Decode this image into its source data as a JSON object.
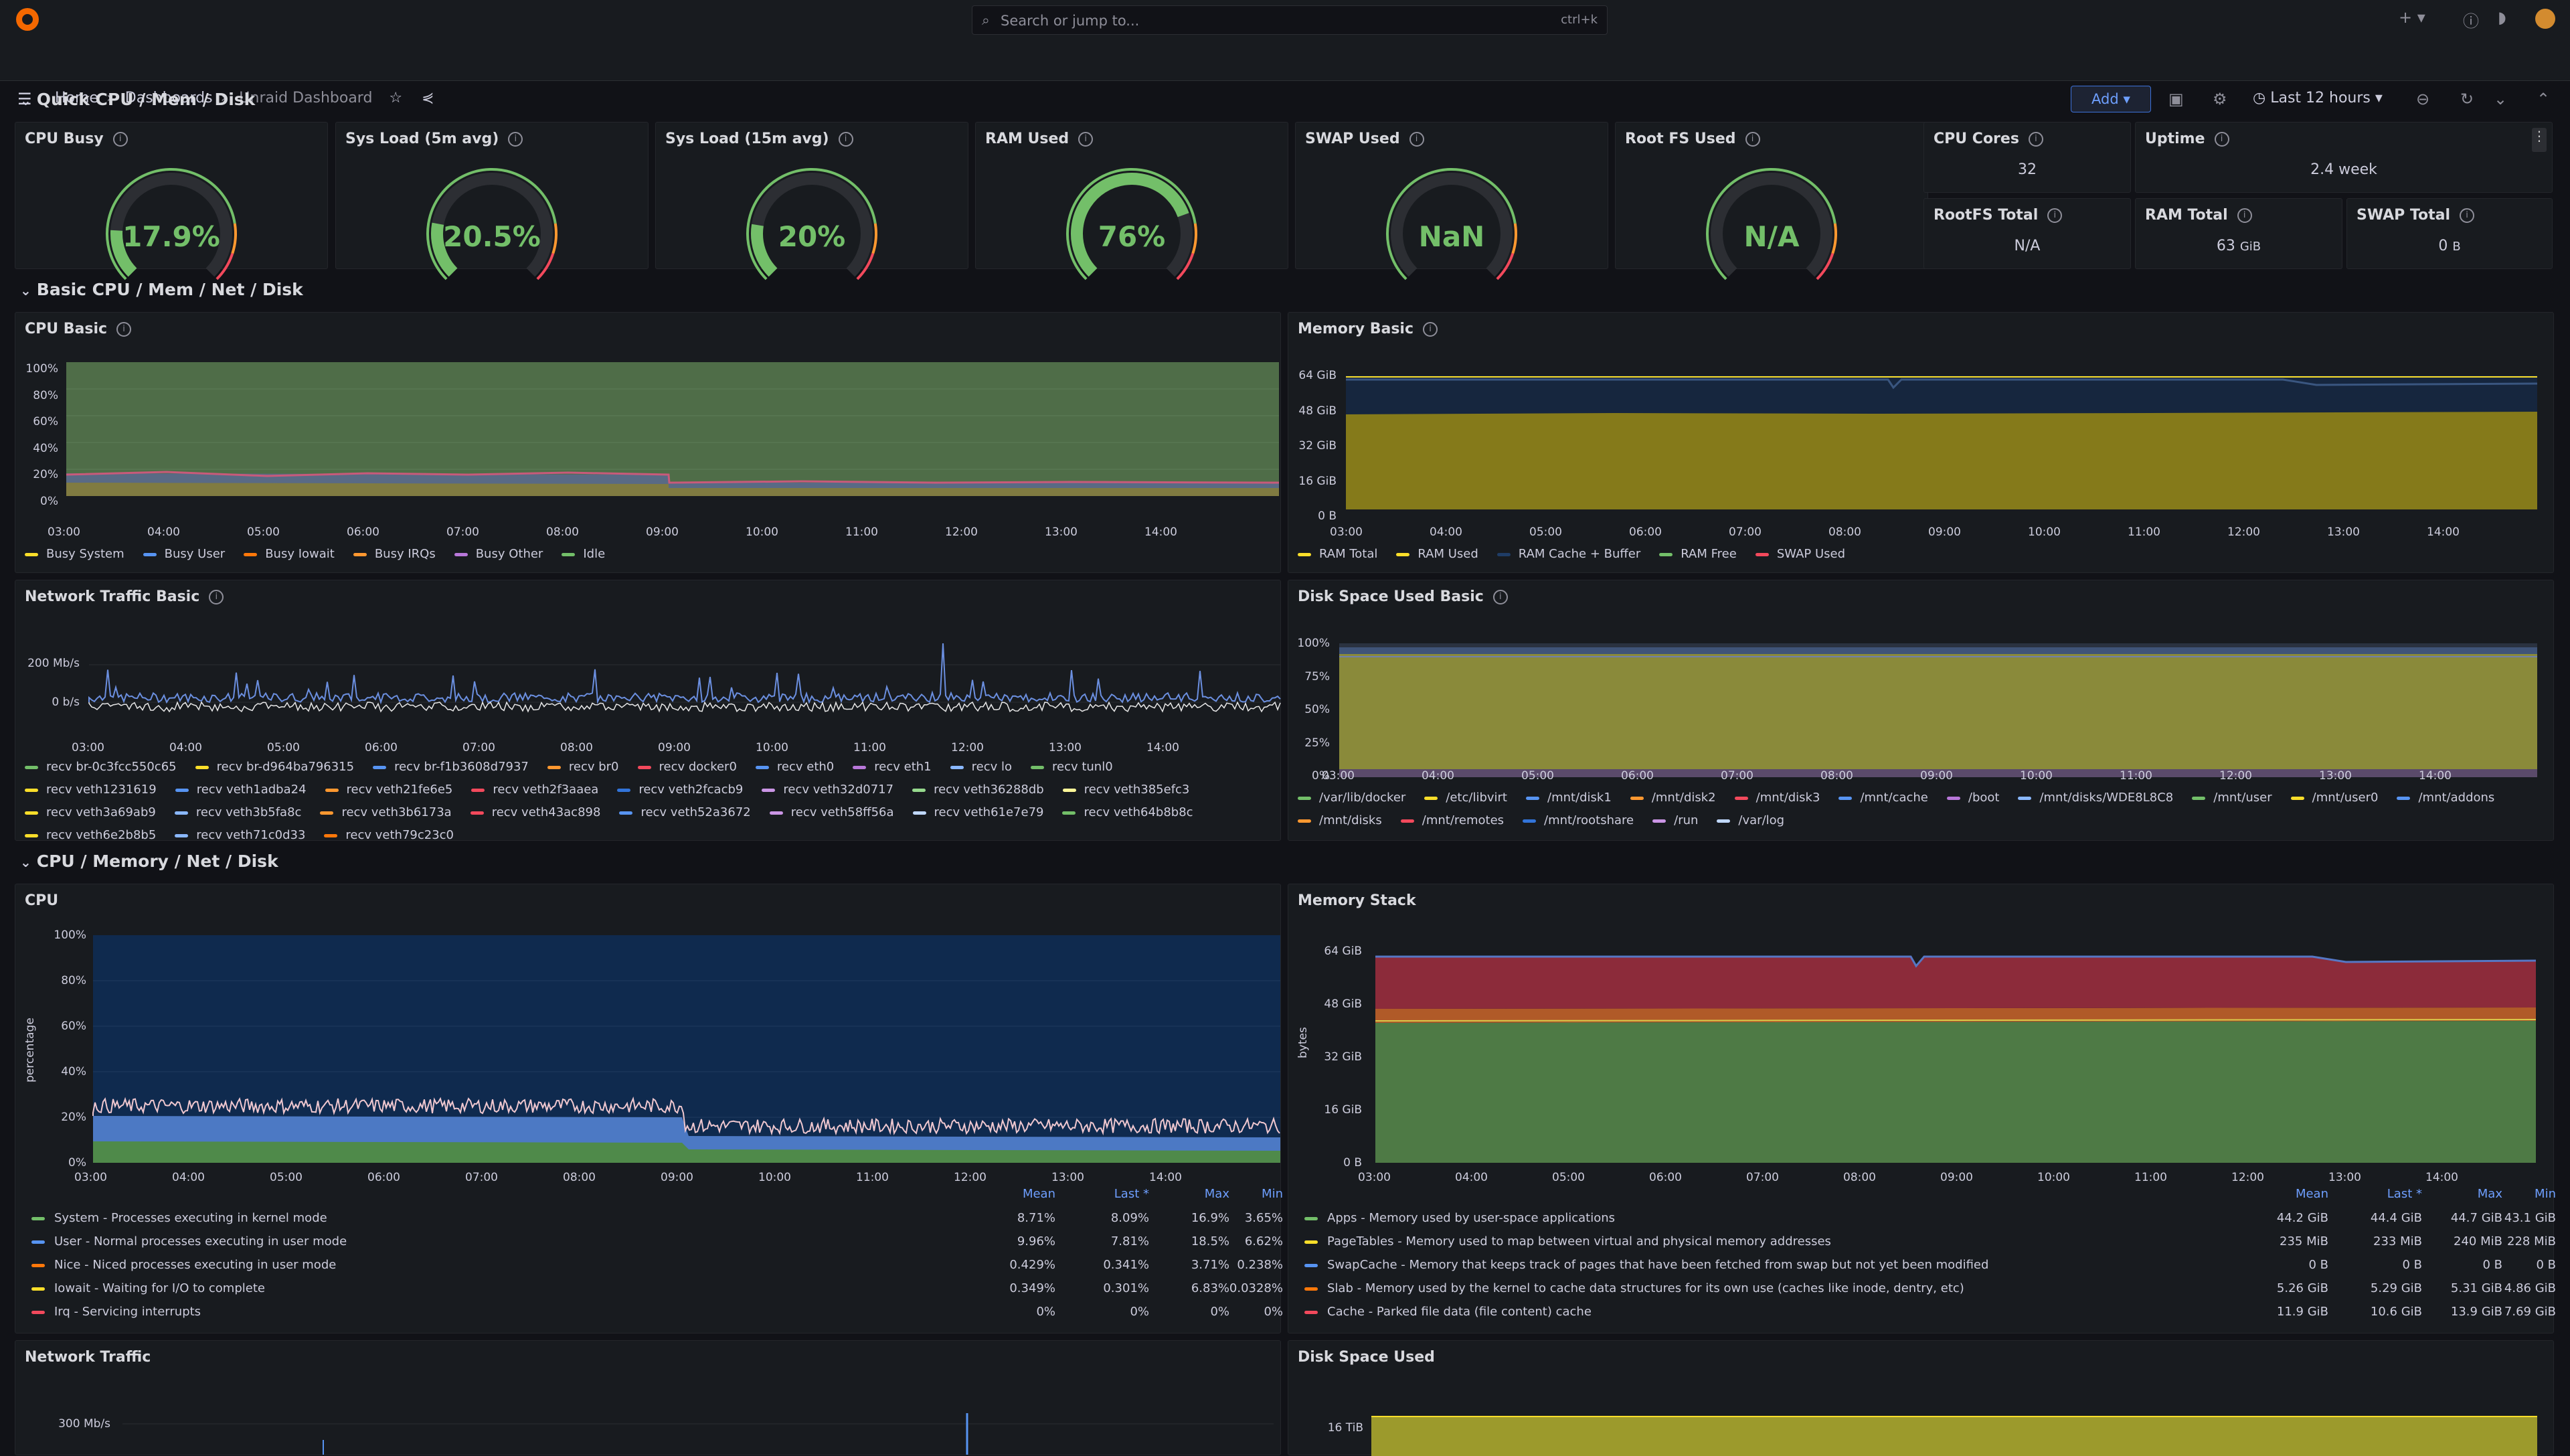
{
  "topbar": {
    "search_placeholder": "Search or jump to...",
    "search_shortcut": "ctrl+k"
  },
  "nav": {
    "breadcrumbs": [
      "Home",
      "Dashboards",
      "Unraid Dashboard"
    ],
    "add_label": "Add",
    "time_range": "Last 12 hours"
  },
  "sections": {
    "quick": "Quick CPU / Mem / Disk",
    "basic": "Basic CPU / Mem / Net / Disk",
    "full": "CPU / Memory / Net / Disk"
  },
  "gauges": [
    {
      "title": "CPU Busy",
      "value": "17.9%",
      "fraction": 0.179,
      "color": "#73bf69"
    },
    {
      "title": "Sys Load (5m avg)",
      "value": "20.5%",
      "fraction": 0.205,
      "color": "#73bf69"
    },
    {
      "title": "Sys Load (15m avg)",
      "value": "20%",
      "fraction": 0.2,
      "color": "#73bf69"
    },
    {
      "title": "RAM Used",
      "value": "76%",
      "fraction": 0.76,
      "color": "#73bf69"
    },
    {
      "title": "SWAP Used",
      "value": "NaN",
      "fraction": 0,
      "color": "#73bf69"
    },
    {
      "title": "Root FS Used",
      "value": "N/A",
      "fraction": 0,
      "color": "#73bf69"
    }
  ],
  "stats": {
    "cpu_cores": {
      "title": "CPU Cores",
      "value": "32"
    },
    "uptime": {
      "title": "Uptime",
      "value": "2.4 week"
    },
    "rootfs_total": {
      "title": "RootFS Total",
      "value": "N/A"
    },
    "ram_total": {
      "title": "RAM Total",
      "value": "63",
      "unit": "GiB"
    },
    "swap_total": {
      "title": "SWAP Total",
      "value": "0",
      "unit": "B"
    }
  },
  "panels": {
    "cpu_basic": {
      "title": "CPU Basic",
      "yticks": [
        "100%",
        "80%",
        "60%",
        "40%",
        "20%",
        "0%"
      ],
      "xticks": [
        "03:00",
        "04:00",
        "05:00",
        "06:00",
        "07:00",
        "08:00",
        "09:00",
        "10:00",
        "11:00",
        "12:00",
        "13:00",
        "14:00"
      ],
      "legend": [
        {
          "name": "Busy System",
          "color": "#fade2a"
        },
        {
          "name": "Busy User",
          "color": "#5794f2"
        },
        {
          "name": "Busy Iowait",
          "color": "#ff780a"
        },
        {
          "name": "Busy IRQs",
          "color": "#ff9830"
        },
        {
          "name": "Busy Other",
          "color": "#b877d9"
        },
        {
          "name": "Idle",
          "color": "#73bf69"
        }
      ]
    },
    "memory_basic": {
      "title": "Memory Basic",
      "yticks": [
        "64 GiB",
        "48 GiB",
        "32 GiB",
        "16 GiB",
        "0 B"
      ],
      "xticks": [
        "03:00",
        "04:00",
        "05:00",
        "06:00",
        "07:00",
        "08:00",
        "09:00",
        "10:00",
        "11:00",
        "12:00",
        "13:00",
        "14:00"
      ],
      "legend": [
        {
          "name": "RAM Total",
          "color": "#fade2a"
        },
        {
          "name": "RAM Used",
          "color": "#fade2a"
        },
        {
          "name": "RAM Cache + Buffer",
          "color": "#1f3d66"
        },
        {
          "name": "RAM Free",
          "color": "#73bf69"
        },
        {
          "name": "SWAP Used",
          "color": "#f2495c"
        }
      ]
    },
    "net_basic": {
      "title": "Network Traffic Basic",
      "yticks": [
        "200 Mb/s",
        "0 b/s"
      ],
      "xticks": [
        "03:00",
        "04:00",
        "05:00",
        "06:00",
        "07:00",
        "08:00",
        "09:00",
        "10:00",
        "11:00",
        "12:00",
        "13:00",
        "14:00"
      ],
      "legend": [
        {
          "name": "recv br-0c3fcc550c65",
          "color": "#73bf69"
        },
        {
          "name": "recv br-d964ba796315",
          "color": "#fade2a"
        },
        {
          "name": "recv br-f1b3608d7937",
          "color": "#5794f2"
        },
        {
          "name": "recv br0",
          "color": "#ff9830"
        },
        {
          "name": "recv docker0",
          "color": "#f2495c"
        },
        {
          "name": "recv eth0",
          "color": "#5794f2"
        },
        {
          "name": "recv eth1",
          "color": "#b877d9"
        },
        {
          "name": "recv lo",
          "color": "#8ab8ff"
        },
        {
          "name": "recv tunl0",
          "color": "#73bf69"
        },
        {
          "name": "recv veth1231619",
          "color": "#fade2a"
        },
        {
          "name": "recv veth1adba24",
          "color": "#5794f2"
        },
        {
          "name": "recv veth21fe6e5",
          "color": "#ff9830"
        },
        {
          "name": "recv veth2f3aaea",
          "color": "#f2495c"
        },
        {
          "name": "recv veth2fcacb9",
          "color": "#3274d9"
        },
        {
          "name": "recv veth32d0717",
          "color": "#ca95e5"
        },
        {
          "name": "recv veth36288db",
          "color": "#96d98d"
        },
        {
          "name": "recv veth385efc3",
          "color": "#fff899"
        },
        {
          "name": "recv veth3a69ab9",
          "color": "#fade2a"
        },
        {
          "name": "recv veth3b5fa8c",
          "color": "#8ab8ff"
        },
        {
          "name": "recv veth3b6173a",
          "color": "#ff9830"
        },
        {
          "name": "recv veth43ac898",
          "color": "#f2495c"
        },
        {
          "name": "recv veth52a3672",
          "color": "#5794f2"
        },
        {
          "name": "recv veth58ff56a",
          "color": "#ca95e5"
        },
        {
          "name": "recv veth61e7e79",
          "color": "#c0d8ff"
        },
        {
          "name": "recv veth64b8b8c",
          "color": "#73bf69"
        },
        {
          "name": "recv veth6e2b8b5",
          "color": "#fade2a"
        },
        {
          "name": "recv veth71c0d33",
          "color": "#8ab8ff"
        },
        {
          "name": "recv veth79c23c0",
          "color": "#ff780a"
        }
      ]
    },
    "disk_basic": {
      "title": "Disk Space Used Basic",
      "yticks": [
        "100%",
        "75%",
        "50%",
        "25%",
        "0%"
      ],
      "xticks": [
        "03:00",
        "04:00",
        "05:00",
        "06:00",
        "07:00",
        "08:00",
        "09:00",
        "10:00",
        "11:00",
        "12:00",
        "13:00",
        "14:00"
      ],
      "legend": [
        {
          "name": "/var/lib/docker",
          "color": "#73bf69"
        },
        {
          "name": "/etc/libvirt",
          "color": "#fade2a"
        },
        {
          "name": "/mnt/disk1",
          "color": "#5794f2"
        },
        {
          "name": "/mnt/disk2",
          "color": "#ff9830"
        },
        {
          "name": "/mnt/disk3",
          "color": "#f2495c"
        },
        {
          "name": "/mnt/cache",
          "color": "#5794f2"
        },
        {
          "name": "/boot",
          "color": "#b877d9"
        },
        {
          "name": "/mnt/disks/WDE8L8C8",
          "color": "#8ab8ff"
        },
        {
          "name": "/mnt/user",
          "color": "#73bf69"
        },
        {
          "name": "/mnt/user0",
          "color": "#fade2a"
        },
        {
          "name": "/mnt/addons",
          "color": "#5794f2"
        },
        {
          "name": "/mnt/disks",
          "color": "#ff9830"
        },
        {
          "name": "/mnt/remotes",
          "color": "#f2495c"
        },
        {
          "name": "/mnt/rootshare",
          "color": "#3274d9"
        },
        {
          "name": "/run",
          "color": "#ca95e5"
        },
        {
          "name": "/var/log",
          "color": "#c0d8ff"
        }
      ]
    },
    "cpu": {
      "title": "CPU",
      "ylabel": "percentage",
      "yticks": [
        "100%",
        "80%",
        "60%",
        "40%",
        "20%",
        "0%"
      ],
      "xticks": [
        "03:00",
        "04:00",
        "05:00",
        "06:00",
        "07:00",
        "08:00",
        "09:00",
        "10:00",
        "11:00",
        "12:00",
        "13:00",
        "14:00"
      ],
      "columns": [
        "Mean",
        "Last *",
        "Max",
        "Min"
      ],
      "rows": [
        {
          "name": "System - Processes executing in kernel mode",
          "color": "#73bf69",
          "vals": [
            "8.71%",
            "8.09%",
            "16.9%",
            "3.65%"
          ]
        },
        {
          "name": "User - Normal processes executing in user mode",
          "color": "#5794f2",
          "vals": [
            "9.96%",
            "7.81%",
            "18.5%",
            "6.62%"
          ]
        },
        {
          "name": "Nice - Niced processes executing in user mode",
          "color": "#ff780a",
          "vals": [
            "0.429%",
            "0.341%",
            "3.71%",
            "0.238%"
          ]
        },
        {
          "name": "Iowait - Waiting for I/O to complete",
          "color": "#fade2a",
          "vals": [
            "0.349%",
            "0.301%",
            "6.83%",
            "0.0328%"
          ]
        },
        {
          "name": "Irq - Servicing interrupts",
          "color": "#f2495c",
          "vals": [
            "0%",
            "0%",
            "0%",
            "0%"
          ]
        }
      ]
    },
    "memory_stack": {
      "title": "Memory Stack",
      "ylabel": "bytes",
      "yticks": [
        "64 GiB",
        "48 GiB",
        "32 GiB",
        "16 GiB",
        "0 B"
      ],
      "xticks": [
        "03:00",
        "04:00",
        "05:00",
        "06:00",
        "07:00",
        "08:00",
        "09:00",
        "10:00",
        "11:00",
        "12:00",
        "13:00",
        "14:00"
      ],
      "columns": [
        "Mean",
        "Last *",
        "Max",
        "Min"
      ],
      "rows": [
        {
          "name": "Apps - Memory used by user-space applications",
          "color": "#73bf69",
          "vals": [
            "44.2 GiB",
            "44.4 GiB",
            "44.7 GiB",
            "43.1 GiB"
          ]
        },
        {
          "name": "PageTables - Memory used to map between virtual and physical memory addresses",
          "color": "#fade2a",
          "vals": [
            "235 MiB",
            "233 MiB",
            "240 MiB",
            "228 MiB"
          ]
        },
        {
          "name": "SwapCache - Memory that keeps track of pages that have been fetched from swap but not yet been modified",
          "color": "#5794f2",
          "vals": [
            "0 B",
            "0 B",
            "0 B",
            "0 B"
          ]
        },
        {
          "name": "Slab - Memory used by the kernel to cache data structures for its own use (caches like inode, dentry, etc)",
          "color": "#ff780a",
          "vals": [
            "5.26 GiB",
            "5.29 GiB",
            "5.31 GiB",
            "4.86 GiB"
          ]
        },
        {
          "name": "Cache - Parked file data (file content) cache",
          "color": "#f2495c",
          "vals": [
            "11.9 GiB",
            "10.6 GiB",
            "13.9 GiB",
            "7.69 GiB"
          ]
        }
      ]
    },
    "net_traffic": {
      "title": "Network Traffic",
      "yticks": [
        "300 Mb/s"
      ]
    },
    "disk_used": {
      "title": "Disk Space Used",
      "yticks": [
        "16 TiB"
      ]
    }
  }
}
